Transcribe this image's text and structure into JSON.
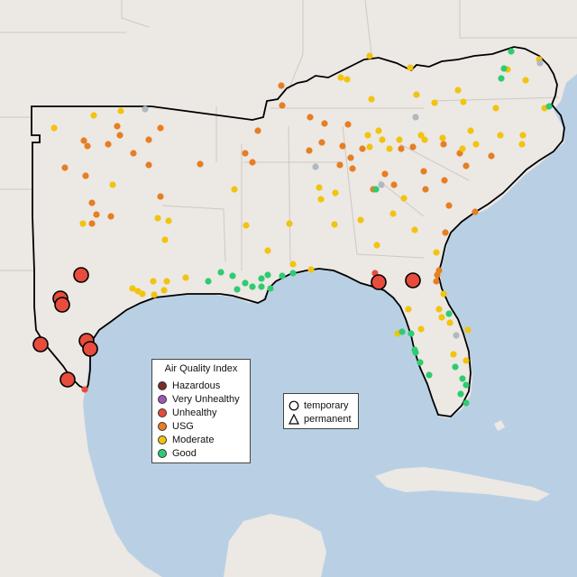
{
  "legend": {
    "title": "Air Quality Index",
    "categories": [
      {
        "label": "Hazardous",
        "color": "#7e2b2b"
      },
      {
        "label": "Very Unhealthy",
        "color": "#9b59b6"
      },
      {
        "label": "Unhealthy",
        "color": "#e74c3c"
      },
      {
        "label": "USG",
        "color": "#e67e22"
      },
      {
        "label": "Moderate",
        "color": "#f1c40f"
      },
      {
        "label": "Good",
        "color": "#2ecc71"
      }
    ]
  },
  "shape_legend": {
    "items": [
      {
        "label": "temporary",
        "icon": "circle-icon"
      },
      {
        "label": "permanent",
        "icon": "triangle-icon"
      }
    ]
  },
  "map": {
    "land_color": "#ece8e4",
    "water_color": "#b9d0e4",
    "unhealthy_large_count": 10,
    "region": "southeastern-united-states"
  }
}
